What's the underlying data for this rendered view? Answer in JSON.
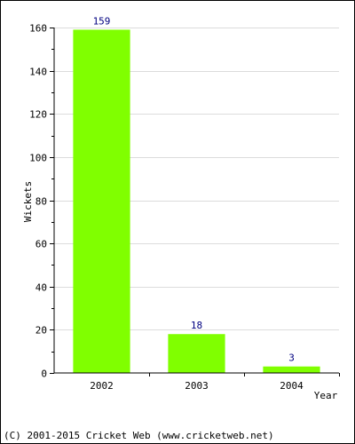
{
  "chart_data": {
    "type": "bar",
    "categories": [
      "2002",
      "2003",
      "2004"
    ],
    "values": [
      159,
      18,
      3
    ],
    "data_labels": [
      "159",
      "18",
      "3"
    ],
    "title": "",
    "xlabel": "Year",
    "ylabel": "Wickets",
    "ylim": [
      0,
      160
    ],
    "yticks": [
      0,
      20,
      40,
      60,
      80,
      100,
      120,
      140,
      160
    ],
    "ytick_labels": [
      "0",
      "20",
      "40",
      "60",
      "80",
      "100",
      "120",
      "140",
      "160"
    ],
    "grid": true,
    "bar_color": "#80ff00",
    "label_color": "#000080"
  },
  "footer": {
    "copyright": "(C) 2001-2015 Cricket Web (www.cricketweb.net)"
  }
}
